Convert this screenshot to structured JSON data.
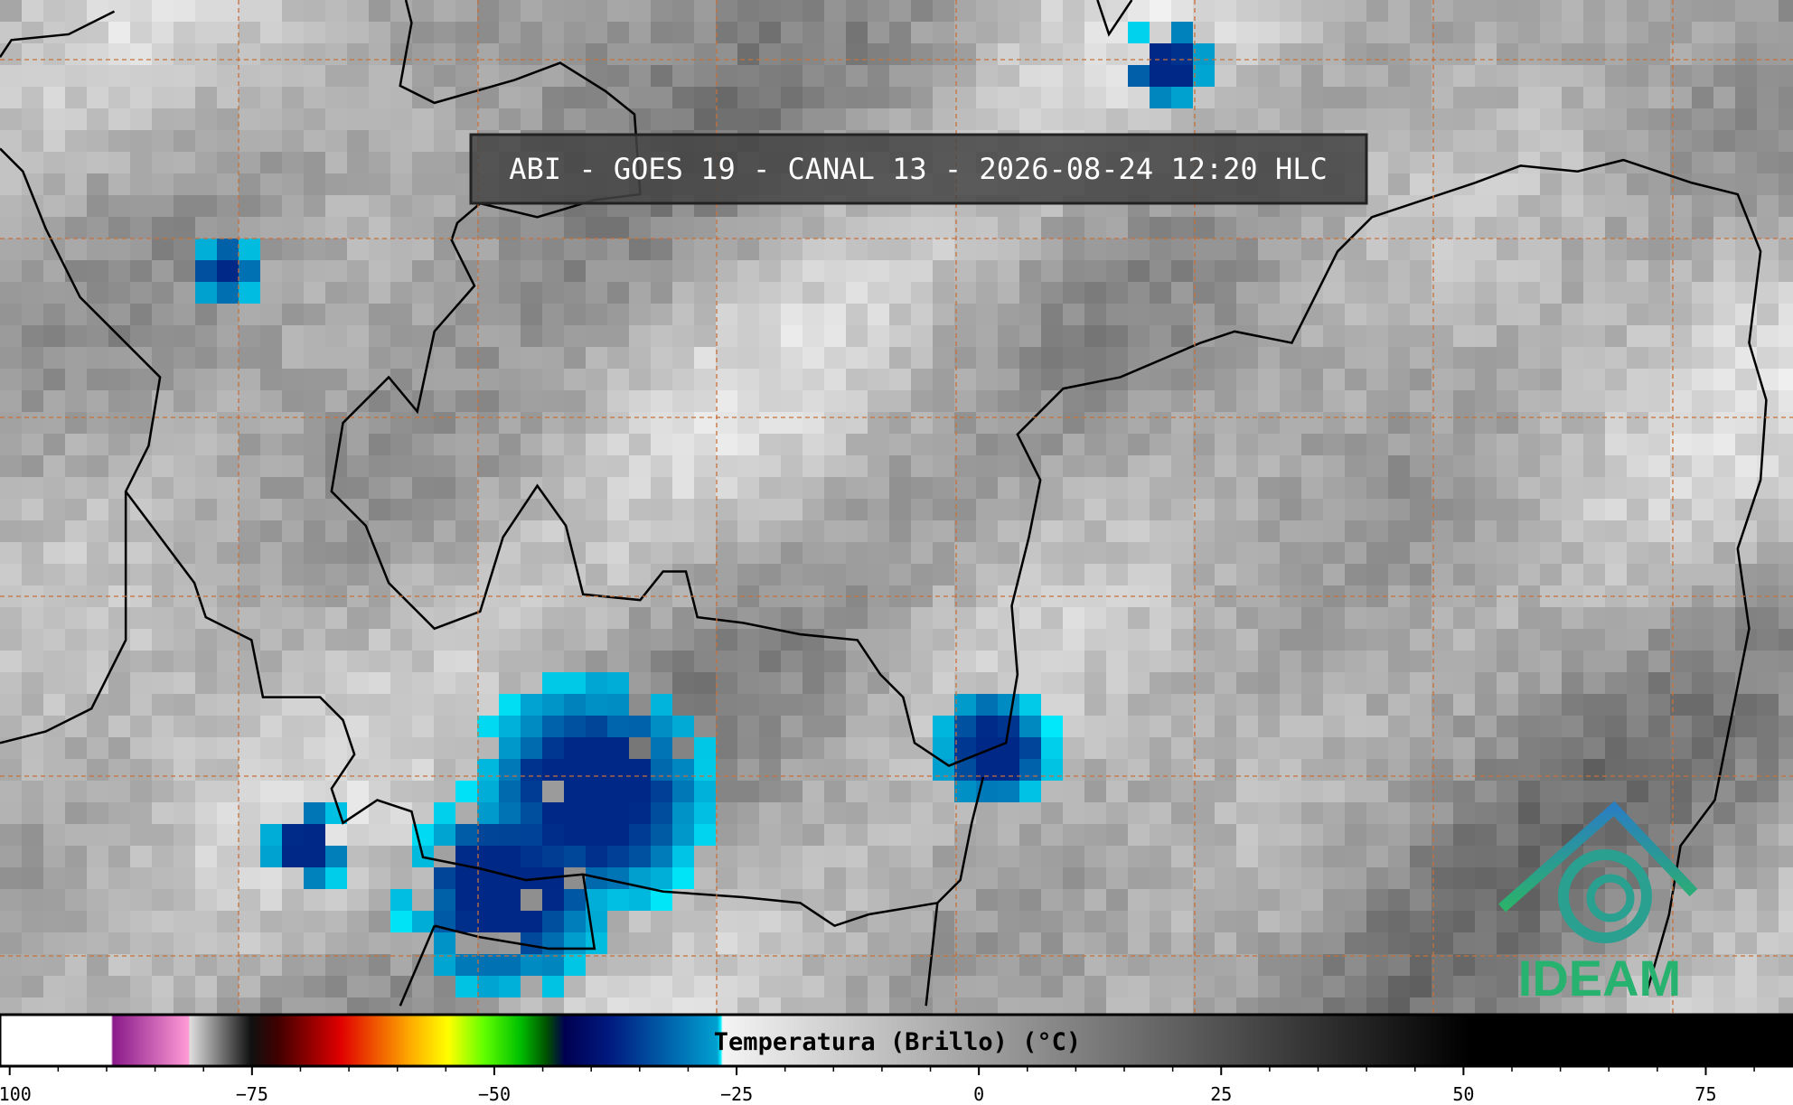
{
  "title": "ABI - GOES 19 - CANAL 13 - 2026-08-24 12:20 HLC",
  "colorbar": {
    "label": "Temperatura (Brillo) (°C)",
    "lim": [
      -101,
      84
    ],
    "ticks": [
      {
        "value": -100,
        "label": "−100"
      },
      {
        "value": -75,
        "label": "−75"
      },
      {
        "value": -50,
        "label": "−50"
      },
      {
        "value": -25,
        "label": "−25"
      },
      0,
      25,
      50,
      75
    ]
  },
  "logo": "IDEAM"
}
